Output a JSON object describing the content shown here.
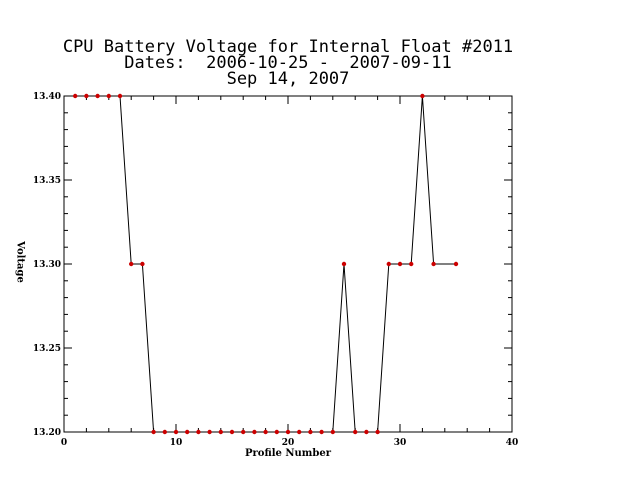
{
  "title_lines": [
    "CPU Battery Voltage for Internal Float #2011",
    "Dates:  2006-10-25 -  2007-09-11",
    "Sep 14, 2007"
  ],
  "colors": {
    "line": "#000000",
    "marker": "#cc0000",
    "axis": "#000000",
    "background": "#ffffff"
  },
  "chart_data": {
    "type": "line",
    "title": "CPU Battery Voltage for Internal Float #2011",
    "subtitle": [
      "Dates:  2006-10-25 -  2007-09-11",
      "Sep 14, 2007"
    ],
    "xlabel": "Profile Number",
    "ylabel": "Voltage",
    "xlim": [
      0,
      40
    ],
    "ylim": [
      13.2,
      13.4
    ],
    "xticks": [
      0,
      10,
      20,
      30,
      40
    ],
    "xtick_labels": [
      "0",
      "10",
      "20",
      "30",
      "40"
    ],
    "yticks": [
      13.2,
      13.25,
      13.3,
      13.35,
      13.4
    ],
    "ytick_labels": [
      "13.20",
      "13.25",
      "13.30",
      "13.35",
      "13.40"
    ],
    "grid": false,
    "series": [
      {
        "x": [
          1,
          2,
          3,
          4,
          5,
          6,
          7,
          8,
          9,
          10,
          11,
          12,
          13,
          14,
          15,
          16,
          17,
          18,
          19,
          20,
          21,
          22,
          23,
          24,
          25,
          26,
          27,
          28,
          29,
          30,
          31,
          32,
          33,
          35
        ],
        "y": [
          13.4,
          13.4,
          13.4,
          13.4,
          13.4,
          13.3,
          13.3,
          13.2,
          13.2,
          13.2,
          13.2,
          13.2,
          13.2,
          13.2,
          13.2,
          13.2,
          13.2,
          13.2,
          13.2,
          13.2,
          13.2,
          13.2,
          13.2,
          13.2,
          13.3,
          13.2,
          13.2,
          13.2,
          13.3,
          13.3,
          13.3,
          13.4,
          13.3,
          13.3
        ]
      }
    ]
  }
}
